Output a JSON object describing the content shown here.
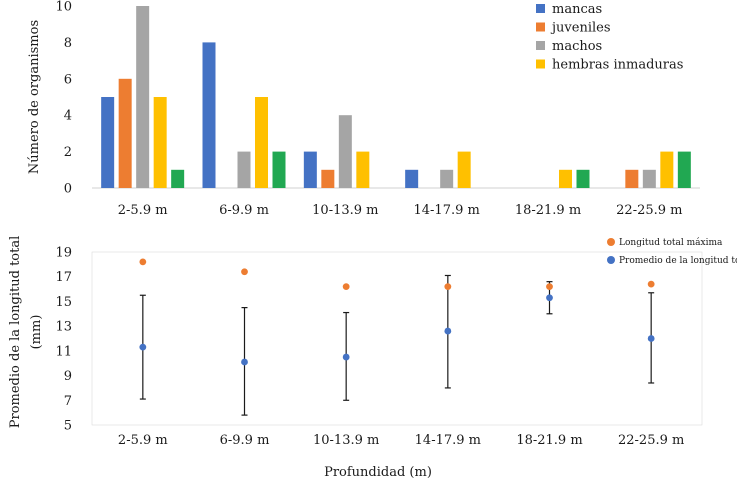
{
  "chart_data": [
    {
      "type": "bar",
      "title": "",
      "xlabel": "",
      "ylabel": "Número de organismos",
      "ylim": [
        0,
        10
      ],
      "yticks": [
        "0",
        "2",
        "4",
        "6",
        "8",
        "10"
      ],
      "categories": [
        "2-5.9 m",
        "6-9.9 m",
        "10-13.9 m",
        "14-17.9  m",
        "18-21.9 m",
        "22-25.9 m"
      ],
      "legend_position": "top-right",
      "series": [
        {
          "name": "mancas",
          "color": "#4472c4",
          "values": [
            5,
            8,
            2,
            1,
            0,
            0
          ]
        },
        {
          "name": "juveniles",
          "color": "#ed7d31",
          "values": [
            6,
            0,
            1,
            0,
            0,
            1
          ]
        },
        {
          "name": "machos",
          "color": "#a5a5a5",
          "values": [
            10,
            2,
            4,
            1,
            0,
            1
          ]
        },
        {
          "name": "hembras inmaduras",
          "color": "#ffc000",
          "values": [
            5,
            5,
            2,
            2,
            1,
            2
          ]
        },
        {
          "name": "",
          "color": "#21a852",
          "values": [
            1,
            2,
            0,
            0,
            1,
            2
          ]
        }
      ]
    },
    {
      "type": "scatter",
      "title": "",
      "xlabel": "Profundidad (m)",
      "ylabel_line1": "Promedio de la longitud total",
      "ylabel_line2": "(mm)",
      "ylim": [
        5,
        19
      ],
      "yticks": [
        "5",
        "7",
        "9",
        "11",
        "13",
        "15",
        "17",
        "19"
      ],
      "categories": [
        "2-5.9 m",
        "6-9.9 m",
        "10-13.9 m",
        "14-17.9  m",
        "18-21.9 m",
        "22-25.9 m"
      ],
      "legend_position": "top-right",
      "series": [
        {
          "name": "Longitud total máxima",
          "color": "#ed7d31",
          "values": [
            18.2,
            17.4,
            16.2,
            16.2,
            16.2,
            16.4
          ]
        },
        {
          "name": "Promedio de la longitud total",
          "color": "#4472c4",
          "values": [
            11.3,
            10.1,
            10.5,
            12.6,
            15.3,
            12.0
          ],
          "error_low": [
            7.1,
            5.8,
            7.0,
            8.0,
            14.0,
            8.4
          ],
          "error_high": [
            15.5,
            14.5,
            14.1,
            17.1,
            16.6,
            15.7
          ]
        }
      ]
    }
  ]
}
